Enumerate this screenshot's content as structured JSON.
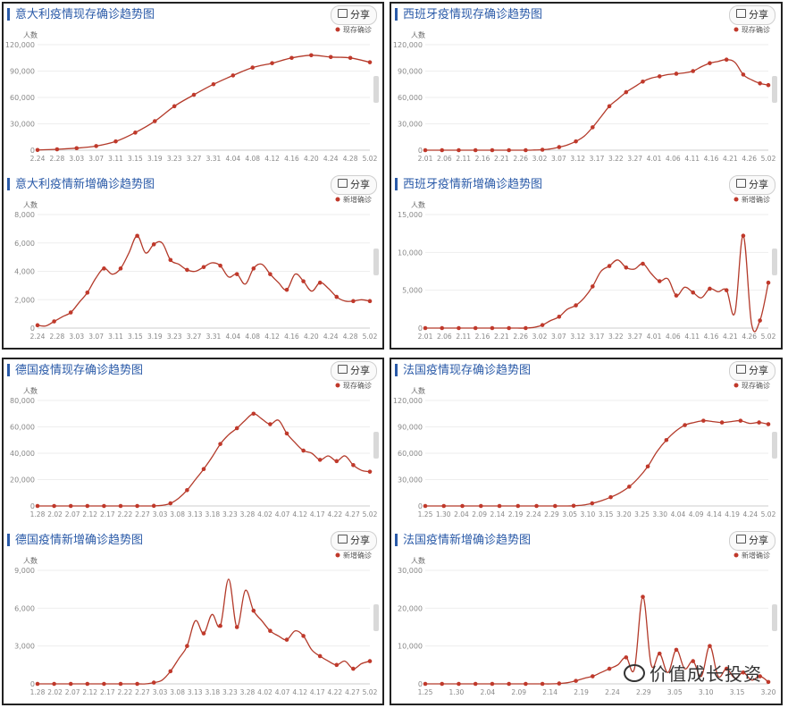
{
  "share_label": "分享",
  "watermark": "价值成长投资",
  "colors": {
    "line": "#b33a2a",
    "marker": "#c0392b",
    "axis": "#cccccc",
    "grid": "#eeeeee",
    "title": "#2a5aa8"
  },
  "chart_data": [
    {
      "id": "italy-existing",
      "type": "line",
      "title": "意大利疫情现存确诊趋势图",
      "ylabel": "人数",
      "legend": "现存确诊",
      "ylim": [
        0,
        120000
      ],
      "yticks": [
        "0",
        "30,000",
        "60,000",
        "90,000",
        "120,000"
      ],
      "xticks": [
        "2.24",
        "2.28",
        "3.03",
        "3.07",
        "3.11",
        "3.15",
        "3.19",
        "3.23",
        "3.27",
        "3.31",
        "4.04",
        "4.08",
        "4.12",
        "4.16",
        "4.20",
        "4.24",
        "4.28",
        "5.02"
      ],
      "values": [
        220,
        1000,
        2300,
        4700,
        10000,
        20000,
        33000,
        50000,
        63000,
        75000,
        85000,
        94000,
        99000,
        105000,
        108000,
        106000,
        105000,
        100000
      ]
    },
    {
      "id": "italy-new",
      "type": "line",
      "title": "意大利疫情新增确诊趋势图",
      "ylabel": "人数",
      "legend": "新增确诊",
      "ylim": [
        0,
        8000
      ],
      "yticks": [
        "0",
        "2,000",
        "4,000",
        "6,000",
        "8,000"
      ],
      "xticks": [
        "2.24",
        "2.28",
        "3.03",
        "3.07",
        "3.11",
        "3.15",
        "3.19",
        "3.23",
        "3.27",
        "3.31",
        "4.04",
        "4.08",
        "4.12",
        "4.16",
        "4.20",
        "4.24",
        "4.28",
        "5.02"
      ],
      "values": [
        200,
        150,
        470,
        800,
        1100,
        1800,
        2500,
        3500,
        4200,
        3800,
        4200,
        5300,
        6500,
        5300,
        5900,
        6000,
        4800,
        4500,
        4100,
        4000,
        4300,
        4600,
        4400,
        3600,
        3800,
        3100,
        4200,
        4500,
        3800,
        3200,
        2700,
        3800,
        3300,
        2600,
        3200,
        2800,
        2200,
        1900,
        1900,
        2000,
        1900
      ]
    },
    {
      "id": "spain-existing",
      "type": "line",
      "title": "西班牙疫情现存确诊趋势图",
      "ylabel": "人数",
      "legend": "现存确诊",
      "ylim": [
        0,
        120000
      ],
      "yticks": [
        "0",
        "30,000",
        "60,000",
        "90,000",
        "120,000"
      ],
      "xticks": [
        "2.01",
        "2.06",
        "2.11",
        "2.16",
        "2.21",
        "2.26",
        "3.02",
        "3.07",
        "3.12",
        "3.17",
        "3.22",
        "3.27",
        "4.01",
        "4.06",
        "4.11",
        "4.16",
        "4.21",
        "4.26",
        "5.02"
      ],
      "values": [
        0,
        0,
        0,
        0,
        0,
        0,
        0,
        0,
        0,
        0,
        0,
        0,
        0,
        200,
        500,
        1500,
        3500,
        6000,
        10000,
        16000,
        26000,
        38000,
        50000,
        58000,
        66000,
        72000,
        78000,
        82000,
        84000,
        86000,
        87000,
        88000,
        90000,
        95000,
        99000,
        101000,
        103000,
        100000,
        86000,
        80000,
        76000,
        74000
      ]
    },
    {
      "id": "spain-new",
      "type": "line",
      "title": "西班牙疫情新增确诊趋势图",
      "ylabel": "人数",
      "legend": "新增确诊",
      "ylim": [
        0,
        15000
      ],
      "yticks": [
        "0",
        "5,000",
        "10,000",
        "15,000"
      ],
      "xticks": [
        "2.01",
        "2.06",
        "2.11",
        "2.16",
        "2.21",
        "2.26",
        "3.02",
        "3.07",
        "3.12",
        "3.17",
        "3.22",
        "3.27",
        "4.01",
        "4.06",
        "4.11",
        "4.16",
        "4.21",
        "4.26",
        "5.02"
      ],
      "values": [
        0,
        0,
        0,
        0,
        0,
        0,
        0,
        0,
        0,
        0,
        0,
        0,
        0,
        100,
        400,
        1000,
        1500,
        2500,
        3000,
        4000,
        5500,
        7500,
        8200,
        9000,
        8000,
        7800,
        8500,
        7200,
        6200,
        6500,
        4300,
        5400,
        4700,
        4000,
        5200,
        4800,
        5000,
        2000,
        12200,
        500,
        1000,
        6000
      ]
    },
    {
      "id": "germany-existing",
      "type": "line",
      "title": "德国疫情现存确诊趋势图",
      "ylabel": "人数",
      "legend": "现存确诊",
      "ylim": [
        0,
        80000
      ],
      "yticks": [
        "0",
        "20,000",
        "40,000",
        "60,000",
        "80,000"
      ],
      "xticks": [
        "1.28",
        "2.02",
        "2.07",
        "2.12",
        "2.17",
        "2.22",
        "2.27",
        "3.03",
        "3.08",
        "3.13",
        "3.18",
        "3.23",
        "3.28",
        "4.02",
        "4.07",
        "4.12",
        "4.17",
        "4.22",
        "4.27",
        "5.02"
      ],
      "values": [
        0,
        0,
        0,
        0,
        0,
        0,
        0,
        0,
        0,
        0,
        0,
        0,
        0,
        0,
        100,
        500,
        2000,
        6000,
        12000,
        20000,
        28000,
        37000,
        47000,
        54000,
        59000,
        65000,
        70000,
        66000,
        62000,
        65000,
        55000,
        48000,
        42000,
        40000,
        35000,
        38000,
        34000,
        38000,
        31000,
        27000,
        26000
      ]
    },
    {
      "id": "germany-new",
      "type": "line",
      "title": "德国疫情新增确诊趋势图",
      "ylabel": "人数",
      "legend": "新增确诊",
      "ylim": [
        0,
        9000
      ],
      "yticks": [
        "0",
        "3,000",
        "6,000",
        "9,000"
      ],
      "xticks": [
        "1.28",
        "2.02",
        "2.07",
        "2.12",
        "2.17",
        "2.22",
        "2.27",
        "3.03",
        "3.08",
        "3.13",
        "3.18",
        "3.23",
        "3.28",
        "4.02",
        "4.07",
        "4.12",
        "4.17",
        "4.22",
        "4.27",
        "5.02"
      ],
      "values": [
        0,
        0,
        0,
        0,
        0,
        0,
        0,
        0,
        0,
        0,
        0,
        0,
        0,
        0,
        100,
        300,
        1000,
        2000,
        3000,
        5000,
        4000,
        5500,
        4600,
        8300,
        4500,
        7400,
        5800,
        5000,
        4200,
        3800,
        3500,
        4200,
        3800,
        2700,
        2200,
        1800,
        1500,
        1800,
        1200,
        1600,
        1800
      ]
    },
    {
      "id": "france-existing",
      "type": "line",
      "title": "法国疫情现存确诊趋势图",
      "ylabel": "人数",
      "legend": "现存确诊",
      "ylim": [
        0,
        120000
      ],
      "yticks": [
        "0",
        "30,000",
        "60,000",
        "90,000",
        "120,000"
      ],
      "xticks": [
        "1.25",
        "1.30",
        "2.04",
        "2.09",
        "2.14",
        "2.19",
        "2.24",
        "2.29",
        "3.05",
        "3.10",
        "3.15",
        "3.20",
        "3.25",
        "3.30",
        "4.04",
        "4.09",
        "4.14",
        "4.19",
        "4.24",
        "5.02"
      ],
      "values": [
        0,
        0,
        0,
        0,
        0,
        0,
        0,
        0,
        0,
        0,
        0,
        0,
        0,
        0,
        0,
        0,
        200,
        1000,
        3000,
        6000,
        10000,
        15000,
        22000,
        32000,
        45000,
        62000,
        75000,
        85000,
        92000,
        95000,
        97000,
        96000,
        95000,
        96000,
        97000,
        94000,
        95000,
        93000
      ]
    },
    {
      "id": "france-new",
      "type": "line",
      "title": "法国疫情新增确诊趋势图",
      "ylabel": "人数",
      "legend": "新增确诊",
      "ylim": [
        0,
        30000
      ],
      "yticks": [
        "0",
        "10,000",
        "20,000",
        "30,000"
      ],
      "xticks": [
        "1.25",
        "1.30",
        "2.04",
        "2.09",
        "2.14",
        "2.19",
        "2.24",
        "2.29",
        "3.05",
        "3.10",
        "3.15",
        "3.20"
      ],
      "values": [
        0,
        0,
        0,
        0,
        0,
        0,
        0,
        0,
        0,
        0,
        0,
        0,
        0,
        0,
        0,
        0,
        100,
        300,
        800,
        1500,
        2000,
        3000,
        4000,
        5000,
        7000,
        4000,
        23000,
        5000,
        8000,
        3000,
        9000,
        4000,
        6000,
        2000,
        10000,
        2000,
        4000,
        1500,
        3000,
        1000,
        2000,
        500
      ]
    }
  ]
}
